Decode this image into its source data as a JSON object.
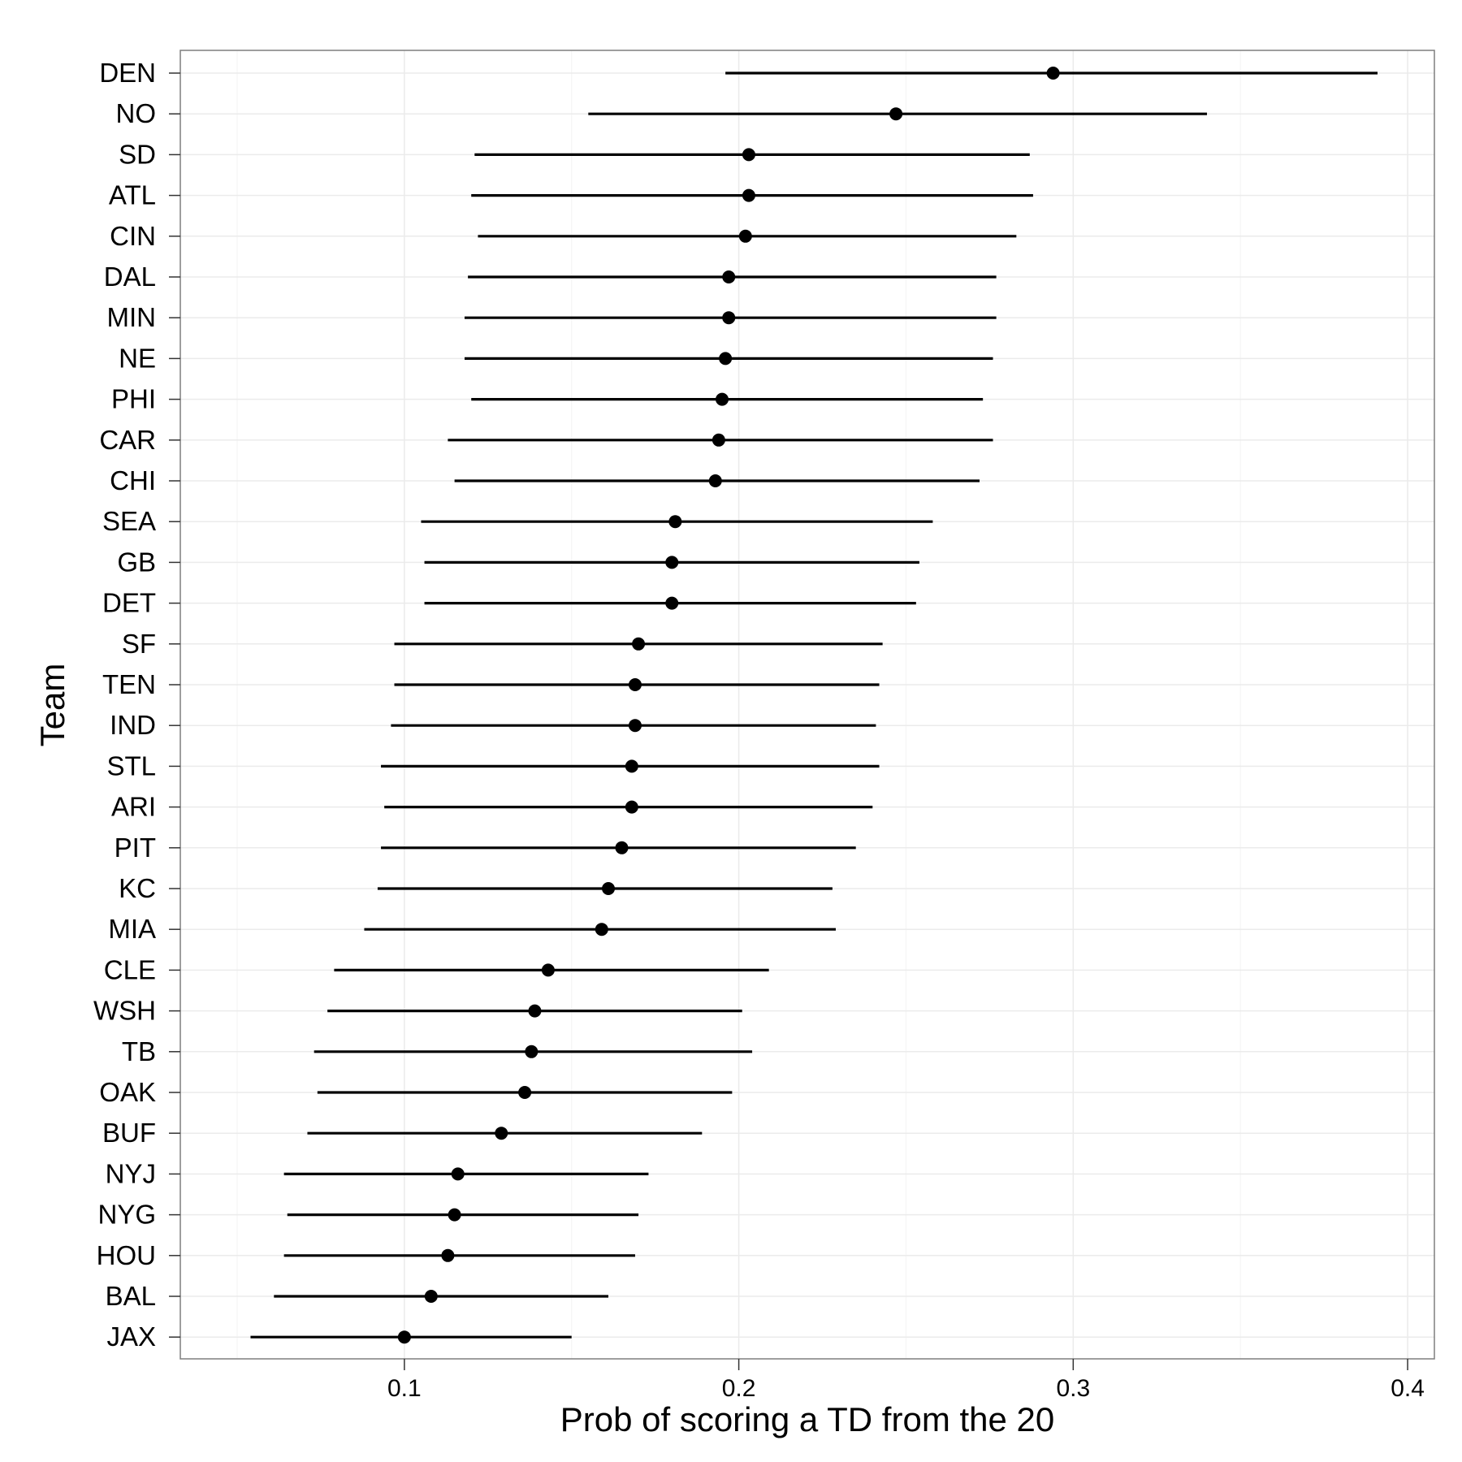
{
  "chart_data": {
    "type": "scatter",
    "xlabel": "Prob of scoring a TD from the 20",
    "ylabel": "Team",
    "xlim": [
      0.033,
      0.408
    ],
    "xticks": [
      0.1,
      0.2,
      0.3,
      0.4
    ],
    "xtick_labels": [
      "0.1",
      "0.2",
      "0.3",
      "0.4"
    ],
    "grid": true,
    "categories": [
      "DEN",
      "NO",
      "SD",
      "ATL",
      "CIN",
      "DAL",
      "MIN",
      "NE",
      "PHI",
      "CAR",
      "CHI",
      "SEA",
      "GB",
      "DET",
      "SF",
      "TEN",
      "IND",
      "STL",
      "ARI",
      "PIT",
      "KC",
      "MIA",
      "CLE",
      "WSH",
      "TB",
      "OAK",
      "BUF",
      "NYJ",
      "NYG",
      "HOU",
      "BAL",
      "JAX"
    ],
    "series": [
      {
        "estimate": [
          0.294,
          0.247,
          0.203,
          0.203,
          0.202,
          0.197,
          0.197,
          0.196,
          0.195,
          0.194,
          0.193,
          0.181,
          0.18,
          0.18,
          0.17,
          0.169,
          0.169,
          0.168,
          0.168,
          0.165,
          0.161,
          0.159,
          0.143,
          0.139,
          0.138,
          0.136,
          0.129,
          0.116,
          0.115,
          0.113,
          0.108,
          0.1
        ],
        "lower": [
          0.196,
          0.155,
          0.121,
          0.12,
          0.122,
          0.119,
          0.118,
          0.118,
          0.12,
          0.113,
          0.115,
          0.105,
          0.106,
          0.106,
          0.097,
          0.097,
          0.096,
          0.093,
          0.094,
          0.093,
          0.092,
          0.088,
          0.079,
          0.077,
          0.073,
          0.074,
          0.071,
          0.064,
          0.065,
          0.064,
          0.061,
          0.054
        ],
        "upper": [
          0.391,
          0.34,
          0.287,
          0.288,
          0.283,
          0.277,
          0.277,
          0.276,
          0.273,
          0.276,
          0.272,
          0.258,
          0.254,
          0.253,
          0.243,
          0.242,
          0.241,
          0.242,
          0.24,
          0.235,
          0.228,
          0.229,
          0.209,
          0.201,
          0.204,
          0.198,
          0.189,
          0.173,
          0.17,
          0.169,
          0.161,
          0.15
        ]
      }
    ],
    "colors": {
      "mark": "#000000",
      "panel_border": "#7f7f7f",
      "grid_major": "#ebebeb",
      "grid_minor": "#f5f5f5",
      "background": "#ffffff"
    }
  }
}
